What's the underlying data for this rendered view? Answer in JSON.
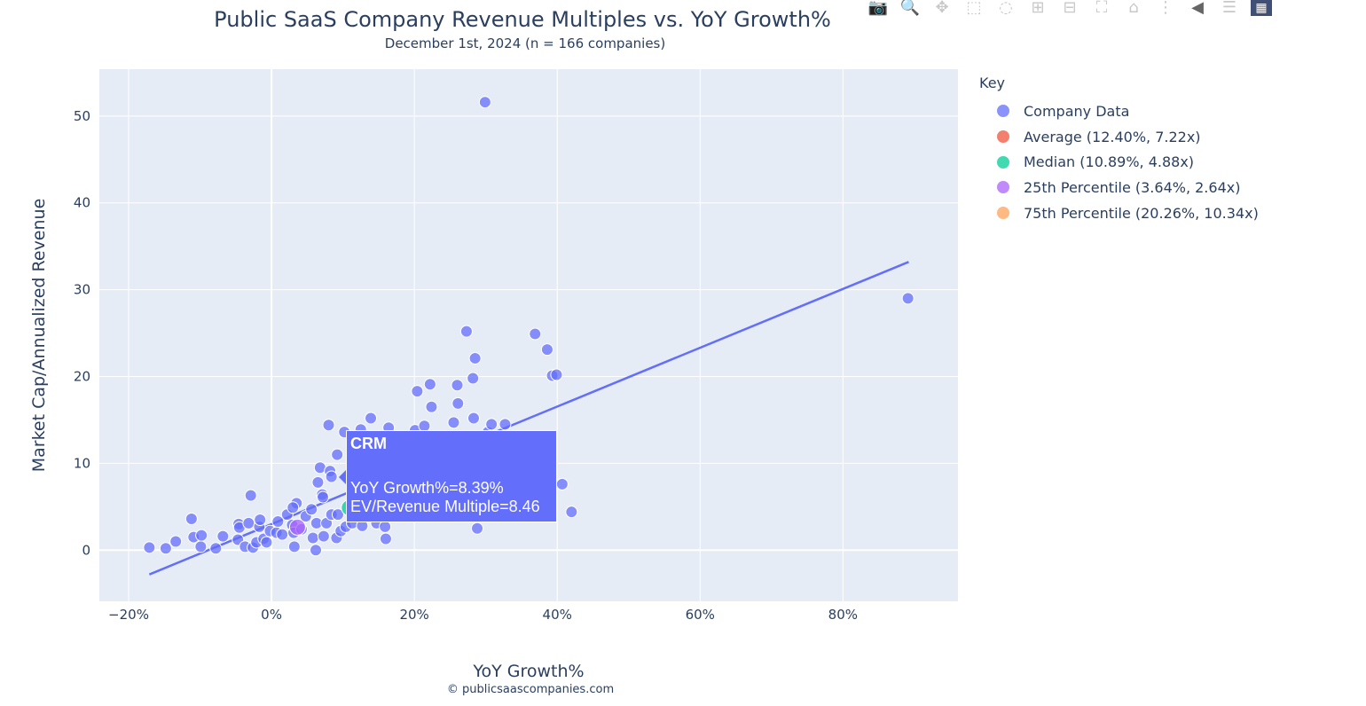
{
  "toolbar": [
    "camera-icon",
    "zoom-icon",
    "pan-icon",
    "box-select-icon",
    "lasso-icon",
    "zoom-in-icon",
    "zoom-out-icon",
    "autoscale-icon",
    "reset-axes-icon",
    "spike-lines-icon",
    "hover-closest-icon",
    "hover-compare-icon",
    "plotly-logo-icon"
  ],
  "credit": "© publicsaascompanies.com",
  "tooltip": {
    "ticker": "CRM",
    "line1": "YoY Growth%=8.39%",
    "line2": "EV/Revenue Multiple=8.46"
  },
  "chart_data": {
    "type": "scatter",
    "title": "Public SaaS Company Revenue Multiples vs. YoY Growth%",
    "subtitle": "December 1st, 2024 (n = 166 companies)",
    "xlabel": "YoY Growth%",
    "ylabel": "Market Cap/Annualized Revenue",
    "xlim": [
      -24.1,
      96.1
    ],
    "ylim": [
      -5.9,
      55.4
    ],
    "xticks": [
      -20,
      0,
      20,
      40,
      60,
      80
    ],
    "xtick_labels": [
      "−20%",
      "0%",
      "20%",
      "40%",
      "60%",
      "80%"
    ],
    "yticks": [
      0,
      10,
      20,
      30,
      40,
      50
    ],
    "ytick_labels": [
      "0",
      "10",
      "20",
      "30",
      "40",
      "50"
    ],
    "grid": true,
    "legend_title": "Key",
    "legend_position": "right",
    "series": [
      {
        "name": "Company Data",
        "color": "#636efa",
        "x": [
          -17.1,
          -14.8,
          -13.4,
          -11.2,
          -10.9,
          -9.9,
          -9.8,
          -7.8,
          -6.8,
          -4.7,
          -4.6,
          -4.5,
          -3.7,
          -3.2,
          -2.9,
          -2.6,
          -2.1,
          -1.7,
          -1.6,
          -1.1,
          -0.7,
          -0.2,
          0.7,
          0.9,
          1.5,
          2.2,
          2.9,
          3.1,
          3.2,
          3.5,
          3.0,
          4.2,
          4.8,
          5.6,
          5.8,
          6.2,
          6.3,
          6.5,
          6.8,
          7.1,
          7.2,
          7.3,
          7.7,
          8.0,
          8.2,
          8.39,
          8.4,
          9.1,
          9.2,
          9.3,
          9.7,
          10.2,
          10.4,
          11.3,
          12.5,
          12.7,
          13.9,
          14.7,
          15.9,
          16.0,
          16.4,
          20.1,
          20.4,
          21.4,
          22.2,
          22.4,
          25.5,
          26.0,
          26.1,
          27.3,
          28.2,
          28.3,
          28.5,
          28.8,
          29.9,
          30.3,
          30.8,
          32.7,
          36.9,
          38.6,
          39.3,
          39.9,
          40.7,
          42.0,
          89.1
        ],
        "y": [
          0.3,
          0.2,
          1.0,
          3.6,
          1.5,
          0.4,
          1.7,
          0.2,
          1.6,
          1.2,
          3.0,
          2.6,
          0.4,
          3.1,
          6.3,
          0.3,
          0.9,
          2.7,
          3.5,
          1.3,
          0.9,
          2.2,
          2.0,
          3.3,
          1.8,
          4.1,
          2.9,
          2.0,
          0.4,
          5.4,
          4.9,
          2.4,
          3.9,
          4.7,
          1.4,
          0.0,
          3.1,
          7.8,
          9.5,
          6.4,
          6.1,
          1.6,
          3.1,
          14.4,
          9.1,
          8.46,
          4.1,
          1.4,
          11.0,
          4.1,
          2.2,
          13.6,
          2.7,
          3.1,
          13.9,
          2.8,
          15.2,
          3.1,
          2.7,
          1.3,
          14.1,
          13.8,
          18.3,
          14.3,
          19.1,
          16.5,
          14.7,
          19.0,
          16.9,
          25.2,
          19.8,
          15.2,
          22.1,
          2.5,
          51.6,
          13.6,
          14.5,
          14.5,
          24.9,
          23.1,
          20.1,
          20.2,
          7.6,
          4.4,
          29.0
        ]
      },
      {
        "name": "Average (12.40%, 7.22x)",
        "color": "#EF553B",
        "x": [
          12.4
        ],
        "y": [
          7.22
        ]
      },
      {
        "name": "Median (10.89%, 4.88x)",
        "color": "#00cc96",
        "x": [
          10.89
        ],
        "y": [
          4.88
        ]
      },
      {
        "name": "25th Percentile (3.64%, 2.64x)",
        "color": "#ab63fa",
        "x": [
          3.64
        ],
        "y": [
          2.64
        ]
      },
      {
        "name": "75th Percentile (20.26%, 10.34x)",
        "color": "#FFA15A",
        "x": [
          20.26
        ],
        "y": [
          10.34
        ]
      }
    ],
    "trendline": {
      "color": "#636efa",
      "x": [
        -17.1,
        89.2
      ],
      "y": [
        -2.8,
        33.2
      ]
    }
  }
}
